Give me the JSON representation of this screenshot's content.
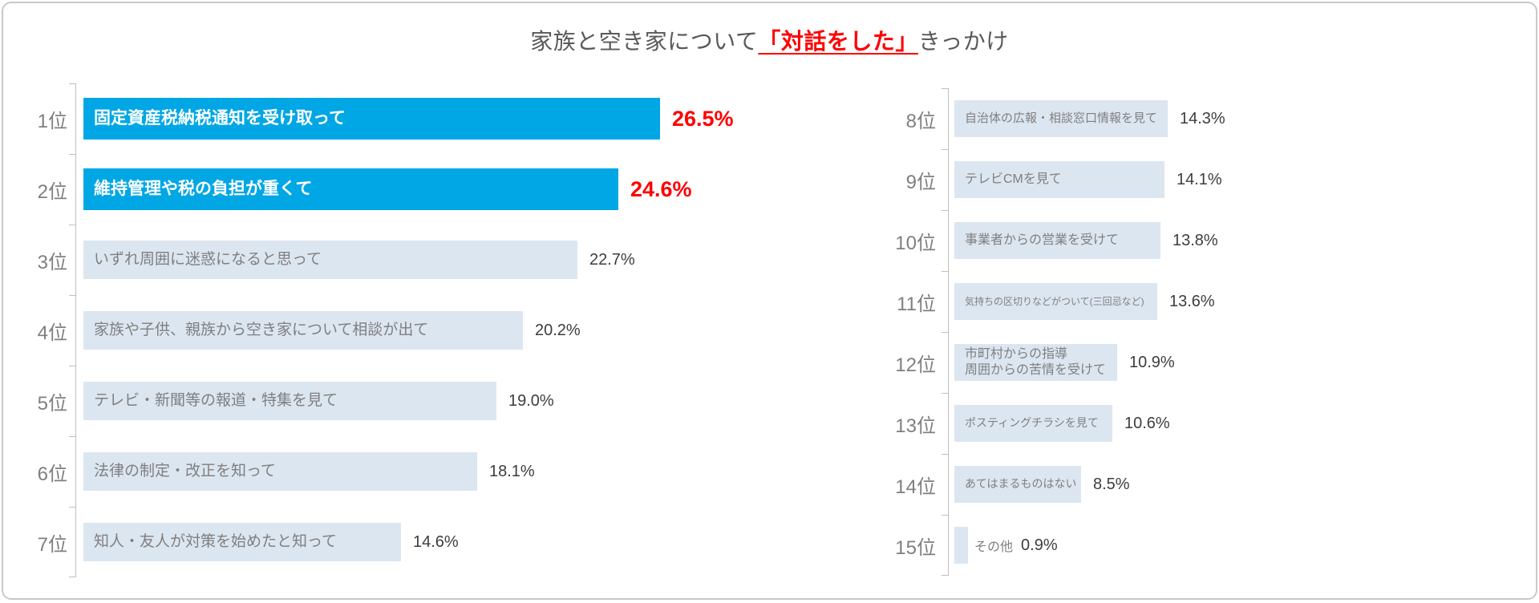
{
  "title": {
    "prefix": "家族と空き家について",
    "highlight": "「対話をした」",
    "suffix": "きっかけ"
  },
  "colors": {
    "highlight_bar": "#00a7e4",
    "bar": "#dce6f1",
    "highlight_value_text": "#ff0000",
    "bar_text": "#7f7f7f",
    "rank_text": "#7f7f7f",
    "value_text": "#3d3d3d",
    "axis": "#bfbfbf",
    "title_text": "#595959"
  },
  "chart_data": {
    "type": "bar",
    "orientation": "horizontal",
    "title": "家族と空き家について「対話をした」きっかけ",
    "unit": "%",
    "xlim": [
      0,
      30
    ],
    "grid": false,
    "legend": "none",
    "highlighted_ranks": [
      1,
      2
    ],
    "columns": [
      {
        "side": "left",
        "items": [
          {
            "rank": "1位",
            "label": "固定資産税納税通知を受け取って",
            "value": 26.5,
            "display": "26.5%",
            "highlight": true
          },
          {
            "rank": "2位",
            "label": "維持管理や税の負担が重くて",
            "value": 24.6,
            "display": "24.6%",
            "highlight": true
          },
          {
            "rank": "3位",
            "label": "いずれ周囲に迷惑になると思って",
            "value": 22.7,
            "display": "22.7%"
          },
          {
            "rank": "4位",
            "label": "家族や子供、親族から空き家について相談が出て",
            "value": 20.2,
            "display": "20.2%"
          },
          {
            "rank": "5位",
            "label": "テレビ・新聞等の報道・特集を見て",
            "value": 19.0,
            "display": "19.0%"
          },
          {
            "rank": "6位",
            "label": "法律の制定・改正を知って",
            "value": 18.1,
            "display": "18.1%"
          },
          {
            "rank": "7位",
            "label": "知人・友人が対策を始めたと知って",
            "value": 14.6,
            "display": "14.6%"
          }
        ]
      },
      {
        "side": "right",
        "items": [
          {
            "rank": "8位",
            "label": "自治体の広報・相談窓口情報を見て",
            "value": 14.3,
            "display": "14.3%"
          },
          {
            "rank": "9位",
            "label": "テレビCMを見て",
            "value": 14.1,
            "display": "14.1%"
          },
          {
            "rank": "10位",
            "label": "事業者からの営業を受けて",
            "value": 13.8,
            "display": "13.8%"
          },
          {
            "rank": "11位",
            "label": "気持ちの区切りなどがついて(三回忌など)",
            "value": 13.6,
            "display": "13.6%"
          },
          {
            "rank": "12位",
            "label": "市町村からの指導\n周囲からの苦情を受けて",
            "value": 10.9,
            "display": "10.9%"
          },
          {
            "rank": "13位",
            "label": "ポスティングチラシを見て",
            "value": 10.6,
            "display": "10.6%"
          },
          {
            "rank": "14位",
            "label": "あてはまるものはない",
            "value": 8.5,
            "display": "8.5%"
          },
          {
            "rank": "15位",
            "label": "その他",
            "value": 0.9,
            "display": "0.9%",
            "label_outside": true
          }
        ]
      }
    ]
  }
}
